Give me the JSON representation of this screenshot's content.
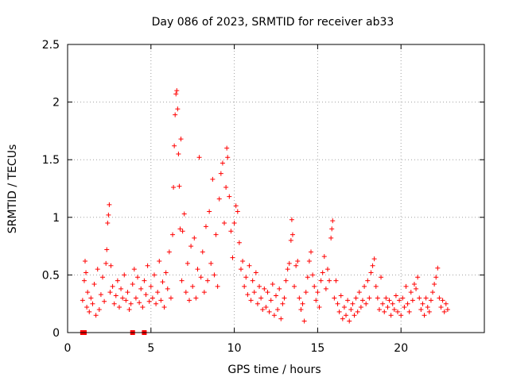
{
  "chart_data": {
    "type": "scatter",
    "title": "Day 086 of 2023, SRMTID for receiver ab33",
    "xlabel": "GPS time / hours",
    "ylabel": "SRMTID / TECUs",
    "xlim": [
      0,
      25
    ],
    "ylim": [
      0,
      2.5
    ],
    "xticks": [
      0,
      5,
      10,
      15,
      20
    ],
    "xtick_labels": [
      "0",
      "5",
      "10",
      "15",
      "20"
    ],
    "yticks": [
      0,
      0.5,
      1,
      1.5,
      2,
      2.5
    ],
    "ytick_labels": [
      "0",
      "0.5",
      "1",
      "1.5",
      "2",
      "2.5"
    ],
    "grid": true,
    "marker": "plus",
    "color": "#ff0000",
    "series": [
      {
        "name": "SRMTID",
        "points": [
          [
            0.9,
            0.28
          ],
          [
            1.0,
            0.45
          ],
          [
            1.05,
            0.62
          ],
          [
            1.1,
            0.52
          ],
          [
            1.15,
            0.22
          ],
          [
            1.2,
            0.35
          ],
          [
            1.3,
            0.18
          ],
          [
            1.4,
            0.3
          ],
          [
            1.5,
            0.25
          ],
          [
            1.6,
            0.42
          ],
          [
            1.7,
            0.15
          ],
          [
            1.8,
            0.55
          ],
          [
            1.9,
            0.2
          ],
          [
            2.0,
            0.33
          ],
          [
            2.1,
            0.48
          ],
          [
            2.2,
            0.27
          ],
          [
            2.3,
            0.6
          ],
          [
            2.35,
            0.72
          ],
          [
            2.4,
            0.95
          ],
          [
            2.45,
            1.02
          ],
          [
            2.5,
            1.11
          ],
          [
            2.55,
            0.35
          ],
          [
            2.6,
            0.58
          ],
          [
            2.7,
            0.4
          ],
          [
            2.8,
            0.25
          ],
          [
            2.9,
            0.32
          ],
          [
            3.0,
            0.45
          ],
          [
            3.1,
            0.22
          ],
          [
            3.2,
            0.38
          ],
          [
            3.3,
            0.3
          ],
          [
            3.4,
            0.5
          ],
          [
            3.5,
            0.28
          ],
          [
            3.6,
            0.35
          ],
          [
            3.7,
            0.2
          ],
          [
            3.8,
            0.25
          ],
          [
            3.9,
            0.42
          ],
          [
            4.0,
            0.55
          ],
          [
            4.1,
            0.3
          ],
          [
            4.2,
            0.48
          ],
          [
            4.3,
            0.26
          ],
          [
            4.4,
            0.38
          ],
          [
            4.5,
            0.22
          ],
          [
            4.6,
            0.45
          ],
          [
            4.7,
            0.33
          ],
          [
            4.8,
            0.58
          ],
          [
            4.9,
            0.27
          ],
          [
            5.0,
            0.4
          ],
          [
            5.1,
            0.3
          ],
          [
            5.2,
            0.5
          ],
          [
            5.3,
            0.25
          ],
          [
            5.4,
            0.35
          ],
          [
            5.5,
            0.62
          ],
          [
            5.6,
            0.28
          ],
          [
            5.7,
            0.44
          ],
          [
            5.8,
            0.22
          ],
          [
            5.9,
            0.52
          ],
          [
            6.0,
            0.38
          ],
          [
            6.1,
            0.7
          ],
          [
            6.2,
            0.3
          ],
          [
            6.3,
            0.85
          ],
          [
            6.35,
            1.26
          ],
          [
            6.4,
            1.62
          ],
          [
            6.45,
            1.89
          ],
          [
            6.5,
            2.07
          ],
          [
            6.55,
            2.1
          ],
          [
            6.6,
            1.94
          ],
          [
            6.65,
            1.55
          ],
          [
            6.7,
            1.27
          ],
          [
            6.75,
            0.9
          ],
          [
            6.8,
            1.68
          ],
          [
            6.85,
            0.45
          ],
          [
            6.9,
            0.88
          ],
          [
            7.0,
            1.03
          ],
          [
            7.1,
            0.35
          ],
          [
            7.2,
            0.6
          ],
          [
            7.3,
            0.28
          ],
          [
            7.4,
            0.75
          ],
          [
            7.5,
            0.4
          ],
          [
            7.6,
            0.82
          ],
          [
            7.7,
            0.3
          ],
          [
            7.8,
            0.55
          ],
          [
            7.9,
            1.52
          ],
          [
            8.0,
            0.48
          ],
          [
            8.1,
            0.7
          ],
          [
            8.2,
            0.35
          ],
          [
            8.3,
            0.92
          ],
          [
            8.4,
            0.45
          ],
          [
            8.5,
            1.05
          ],
          [
            8.6,
            0.6
          ],
          [
            8.7,
            1.33
          ],
          [
            8.8,
            0.5
          ],
          [
            8.9,
            0.85
          ],
          [
            9.0,
            0.4
          ],
          [
            9.1,
            1.16
          ],
          [
            9.2,
            1.38
          ],
          [
            9.3,
            1.47
          ],
          [
            9.4,
            0.95
          ],
          [
            9.5,
            1.26
          ],
          [
            9.55,
            1.6
          ],
          [
            9.6,
            1.52
          ],
          [
            9.7,
            1.18
          ],
          [
            9.8,
            0.88
          ],
          [
            9.9,
            0.65
          ],
          [
            10.0,
            0.95
          ],
          [
            10.1,
            1.1
          ],
          [
            10.2,
            1.05
          ],
          [
            10.3,
            0.78
          ],
          [
            10.4,
            0.55
          ],
          [
            10.5,
            0.62
          ],
          [
            10.6,
            0.4
          ],
          [
            10.7,
            0.48
          ],
          [
            10.8,
            0.33
          ],
          [
            10.9,
            0.58
          ],
          [
            11.0,
            0.28
          ],
          [
            11.1,
            0.45
          ],
          [
            11.2,
            0.35
          ],
          [
            11.3,
            0.52
          ],
          [
            11.4,
            0.25
          ],
          [
            11.5,
            0.4
          ],
          [
            11.6,
            0.3
          ],
          [
            11.7,
            0.2
          ],
          [
            11.8,
            0.38
          ],
          [
            11.9,
            0.22
          ],
          [
            12.0,
            0.35
          ],
          [
            12.1,
            0.18
          ],
          [
            12.2,
            0.28
          ],
          [
            12.3,
            0.42
          ],
          [
            12.4,
            0.15
          ],
          [
            12.5,
            0.32
          ],
          [
            12.6,
            0.2
          ],
          [
            12.7,
            0.38
          ],
          [
            12.8,
            0.12
          ],
          [
            12.9,
            0.25
          ],
          [
            13.0,
            0.3
          ],
          [
            13.1,
            0.45
          ],
          [
            13.2,
            0.55
          ],
          [
            13.3,
            0.6
          ],
          [
            13.4,
            0.8
          ],
          [
            13.45,
            0.98
          ],
          [
            13.5,
            0.85
          ],
          [
            13.6,
            0.4
          ],
          [
            13.7,
            0.58
          ],
          [
            13.8,
            0.62
          ],
          [
            13.9,
            0.3
          ],
          [
            14.0,
            0.2
          ],
          [
            14.1,
            0.25
          ],
          [
            14.2,
            0.1
          ],
          [
            14.3,
            0.35
          ],
          [
            14.4,
            0.48
          ],
          [
            14.5,
            0.62
          ],
          [
            14.6,
            0.7
          ],
          [
            14.7,
            0.5
          ],
          [
            14.8,
            0.4
          ],
          [
            14.9,
            0.28
          ],
          [
            15.0,
            0.35
          ],
          [
            15.1,
            0.22
          ],
          [
            15.2,
            0.45
          ],
          [
            15.3,
            0.52
          ],
          [
            15.4,
            0.66
          ],
          [
            15.5,
            0.38
          ],
          [
            15.6,
            0.55
          ],
          [
            15.7,
            0.45
          ],
          [
            15.8,
            0.82
          ],
          [
            15.85,
            0.9
          ],
          [
            15.9,
            0.97
          ],
          [
            16.0,
            0.3
          ],
          [
            16.1,
            0.45
          ],
          [
            16.2,
            0.25
          ],
          [
            16.3,
            0.18
          ],
          [
            16.4,
            0.32
          ],
          [
            16.5,
            0.12
          ],
          [
            16.6,
            0.22
          ],
          [
            16.7,
            0.15
          ],
          [
            16.8,
            0.28
          ],
          [
            16.9,
            0.1
          ],
          [
            17.0,
            0.2
          ],
          [
            17.1,
            0.25
          ],
          [
            17.2,
            0.15
          ],
          [
            17.3,
            0.3
          ],
          [
            17.4,
            0.18
          ],
          [
            17.5,
            0.35
          ],
          [
            17.6,
            0.22
          ],
          [
            17.7,
            0.28
          ],
          [
            17.8,
            0.4
          ],
          [
            17.9,
            0.25
          ],
          [
            18.0,
            0.45
          ],
          [
            18.1,
            0.3
          ],
          [
            18.2,
            0.52
          ],
          [
            18.3,
            0.58
          ],
          [
            18.4,
            0.64
          ],
          [
            18.5,
            0.4
          ],
          [
            18.6,
            0.3
          ],
          [
            18.7,
            0.2
          ],
          [
            18.8,
            0.48
          ],
          [
            18.9,
            0.25
          ],
          [
            19.0,
            0.18
          ],
          [
            19.1,
            0.3
          ],
          [
            19.2,
            0.22
          ],
          [
            19.3,
            0.28
          ],
          [
            19.4,
            0.15
          ],
          [
            19.5,
            0.25
          ],
          [
            19.6,
            0.2
          ],
          [
            19.7,
            0.32
          ],
          [
            19.8,
            0.18
          ],
          [
            19.9,
            0.28
          ],
          [
            20.0,
            0.15
          ],
          [
            20.1,
            0.3
          ],
          [
            20.2,
            0.22
          ],
          [
            20.3,
            0.4
          ],
          [
            20.4,
            0.25
          ],
          [
            20.5,
            0.18
          ],
          [
            20.6,
            0.35
          ],
          [
            20.7,
            0.28
          ],
          [
            20.8,
            0.42
          ],
          [
            20.9,
            0.38
          ],
          [
            21.0,
            0.48
          ],
          [
            21.1,
            0.3
          ],
          [
            21.2,
            0.2
          ],
          [
            21.3,
            0.25
          ],
          [
            21.4,
            0.15
          ],
          [
            21.5,
            0.3
          ],
          [
            21.6,
            0.22
          ],
          [
            21.7,
            0.18
          ],
          [
            21.8,
            0.28
          ],
          [
            21.9,
            0.35
          ],
          [
            22.0,
            0.42
          ],
          [
            22.1,
            0.48
          ],
          [
            22.2,
            0.56
          ],
          [
            22.3,
            0.3
          ],
          [
            22.4,
            0.22
          ],
          [
            22.5,
            0.28
          ],
          [
            22.6,
            0.18
          ],
          [
            22.7,
            0.25
          ],
          [
            22.8,
            0.2
          ]
        ]
      }
    ],
    "zero_gap_markers": [
      0.9,
      1.0,
      3.9,
      4.6
    ]
  }
}
